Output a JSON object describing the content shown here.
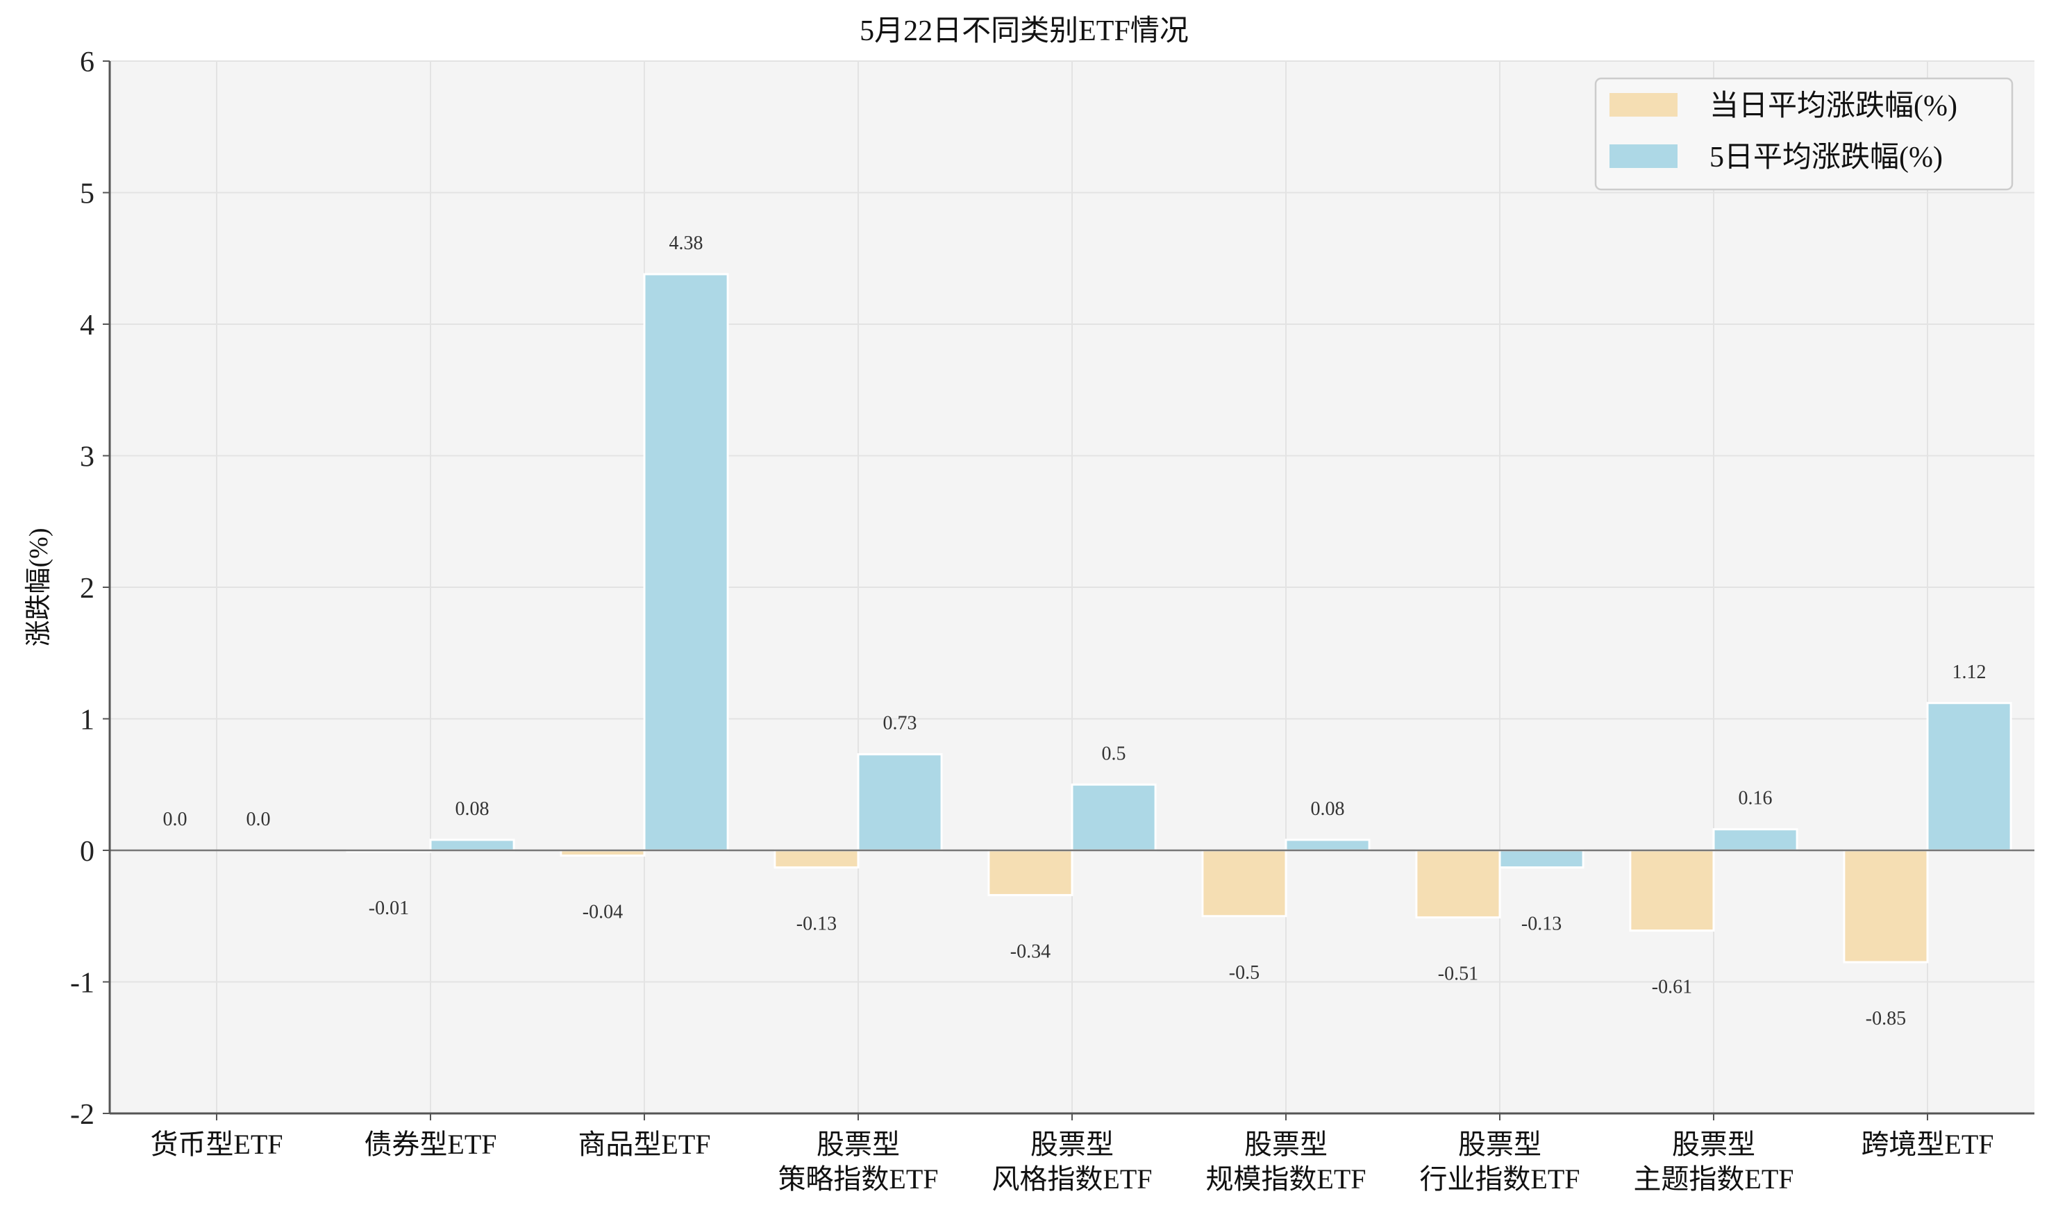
{
  "chart_data": {
    "type": "bar",
    "title": "5月22日不同类别ETF情况",
    "ylabel": "涨跌幅(%)",
    "xlabel": "",
    "ylim": [
      -2,
      6
    ],
    "yticks": [
      "-2",
      "-1",
      "0",
      "1",
      "2",
      "3",
      "4",
      "5",
      "6"
    ],
    "grid": true,
    "legend_position": "top-right",
    "categories": [
      [
        "货币型ETF"
      ],
      [
        "债券型ETF"
      ],
      [
        "商品型ETF"
      ],
      [
        "股票型",
        "策略指数ETF"
      ],
      [
        "股票型",
        "风格指数ETF"
      ],
      [
        "股票型",
        "规模指数ETF"
      ],
      [
        "股票型",
        "行业指数ETF"
      ],
      [
        "股票型",
        "主题指数ETF"
      ],
      [
        "跨境型ETF"
      ]
    ],
    "series": [
      {
        "name": "当日平均涨跌幅(%)",
        "color": "#f5deb3",
        "values": [
          0.0,
          -0.01,
          -0.04,
          -0.13,
          -0.34,
          -0.5,
          -0.51,
          -0.61,
          -0.85
        ],
        "labels": [
          "0.0",
          "-0.01",
          "-0.04",
          "-0.13",
          "-0.34",
          "-0.5",
          "-0.51",
          "-0.61",
          "-0.85"
        ]
      },
      {
        "name": "5日平均涨跌幅(%)",
        "color": "#add8e6",
        "values": [
          0.0,
          0.08,
          4.38,
          0.73,
          0.5,
          0.08,
          -0.13,
          0.16,
          1.12
        ],
        "labels": [
          "0.0",
          "0.08",
          "4.38",
          "0.73",
          "0.5",
          "0.08",
          "-0.13",
          "0.16",
          "1.12"
        ]
      }
    ],
    "colors": {
      "plot_background": "#f4f4f4",
      "grid": "#e3e3e3",
      "axis": "#555555",
      "zero_line": "#777777"
    }
  }
}
